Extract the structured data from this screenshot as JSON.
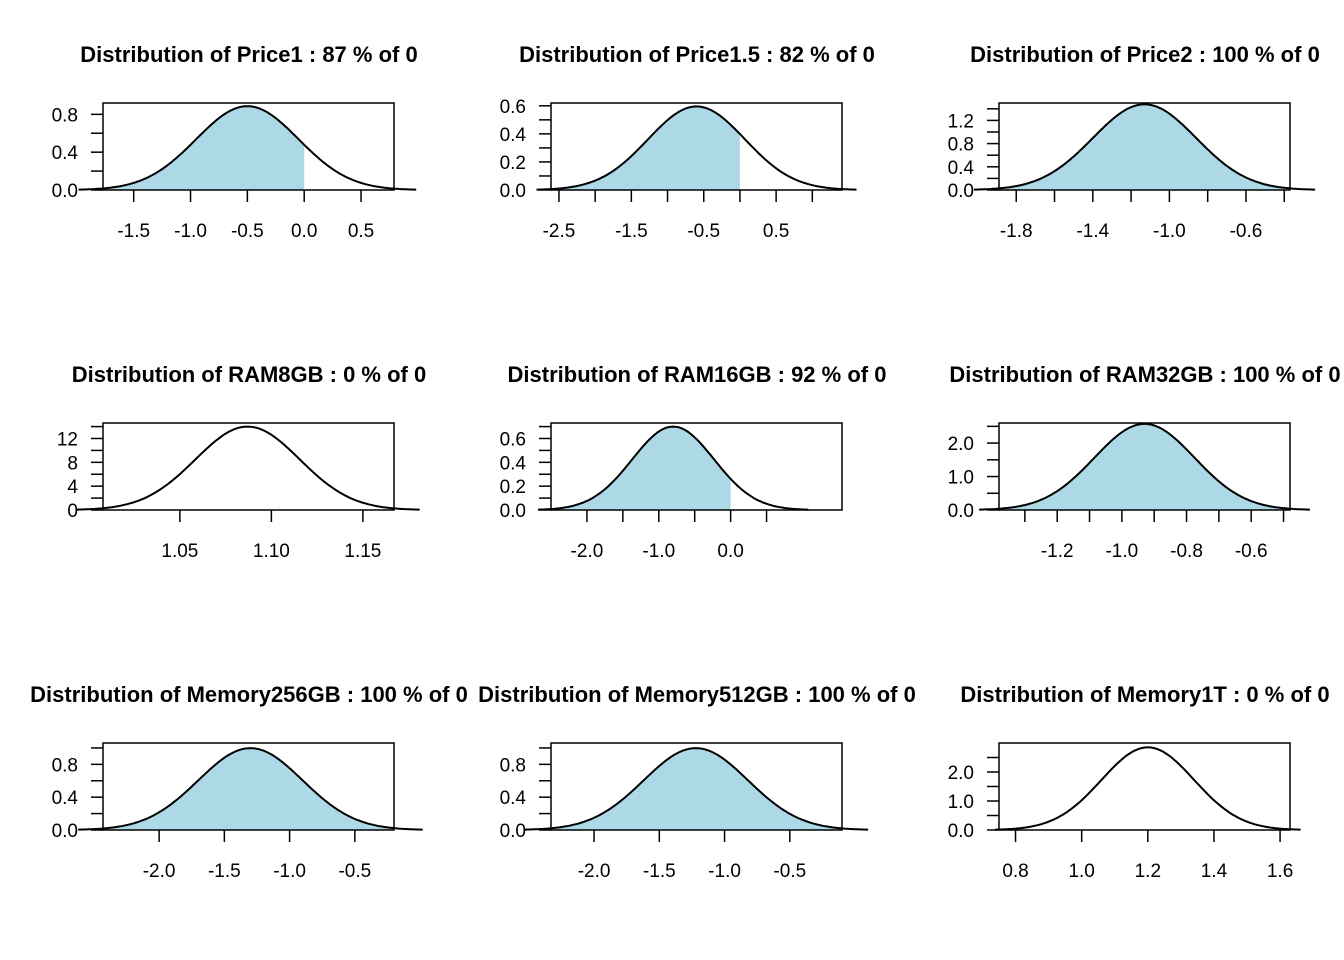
{
  "fill_color": "#add8e6",
  "curve_color": "#000000",
  "chart_data": [
    {
      "type": "area",
      "title": "Distribution of Price1 : 87 % of 0",
      "mean": -0.5,
      "sd": 0.45,
      "xlim": [
        -1.77,
        0.79
      ],
      "ylim": [
        0,
        0.92
      ],
      "shade_to": 0,
      "xticks": [
        -1.5,
        -1.0,
        -0.5,
        0.0,
        0.5
      ],
      "xtick_labels": [
        "-1.5",
        "-1.0",
        "-0.5",
        "0.0",
        "0.5"
      ],
      "yticks": [
        0.0,
        0.2,
        0.4,
        0.6,
        0.8
      ],
      "ytick_labels": [
        "0.0",
        "",
        "0.4",
        "",
        "0.8"
      ]
    },
    {
      "type": "area",
      "title": "Distribution of Price1.5 : 82 % of 0",
      "mean": -0.6,
      "sd": 0.67,
      "xlim": [
        -2.61,
        1.41
      ],
      "ylim": [
        0,
        0.62
      ],
      "shade_to": 0,
      "xticks": [
        -2.5,
        -2.0,
        -1.5,
        -1.0,
        -0.5,
        0.0,
        0.5,
        1.0
      ],
      "xtick_labels": [
        "-2.5",
        "",
        "-1.5",
        "",
        "-0.5",
        "",
        "0.5",
        ""
      ],
      "yticks": [
        0.0,
        0.1,
        0.2,
        0.3,
        0.4,
        0.5,
        0.6
      ],
      "ytick_labels": [
        "0.0",
        "",
        "0.2",
        "",
        "0.4",
        "",
        "0.6"
      ]
    },
    {
      "type": "area",
      "title": "Distribution of Price2 : 100 % of 0",
      "mean": -1.13,
      "sd": 0.27,
      "xlim": [
        -1.89,
        -0.37
      ],
      "ylim": [
        0,
        1.5
      ],
      "shade_to": -0.4,
      "xticks": [
        -1.8,
        -1.6,
        -1.4,
        -1.2,
        -1.0,
        -0.8,
        -0.6,
        -0.4
      ],
      "xtick_labels": [
        "-1.8",
        "",
        "-1.4",
        "",
        "-1.0",
        "",
        "-0.6",
        ""
      ],
      "yticks": [
        0.0,
        0.2,
        0.4,
        0.6,
        0.8,
        1.0,
        1.2,
        1.4
      ],
      "ytick_labels": [
        "0.0",
        "",
        "0.4",
        "",
        "0.8",
        "",
        "1.2",
        ""
      ]
    },
    {
      "type": "area",
      "title": "Distribution of RAM8GB : 0 % of 0",
      "mean": 1.087,
      "sd": 0.0285,
      "xlim": [
        1.008,
        1.167
      ],
      "ylim": [
        0,
        14.6
      ],
      "shade_to": null,
      "xticks": [
        1.05,
        1.1,
        1.15
      ],
      "xtick_labels": [
        "1.05",
        "1.10",
        "1.15"
      ],
      "yticks": [
        0,
        2,
        4,
        6,
        8,
        10,
        12,
        14
      ],
      "ytick_labels": [
        "0",
        "",
        "4",
        "",
        "8",
        "",
        "12",
        ""
      ]
    },
    {
      "type": "area",
      "title": "Distribution of RAM16GB : 92 % of 0",
      "mean": -0.8,
      "sd": 0.57,
      "xlim": [
        -2.5,
        1.55
      ],
      "ylim": [
        0,
        0.73
      ],
      "shade_to": 0,
      "xticks": [
        -2.0,
        -1.5,
        -1.0,
        -0.5,
        0.0,
        0.5
      ],
      "xtick_labels": [
        "-2.0",
        "",
        "-1.0",
        "",
        "0.0",
        ""
      ],
      "yticks": [
        0.0,
        0.1,
        0.2,
        0.3,
        0.4,
        0.5,
        0.6,
        0.7
      ],
      "ytick_labels": [
        "0.0",
        "",
        "0.2",
        "",
        "0.4",
        "",
        "0.6",
        ""
      ]
    },
    {
      "type": "area",
      "title": "Distribution of RAM32GB : 100 % of 0",
      "mean": -0.93,
      "sd": 0.155,
      "xlim": [
        -1.38,
        -0.48
      ],
      "ylim": [
        0,
        2.6
      ],
      "shade_to": -0.48,
      "xticks": [
        -1.3,
        -1.2,
        -1.1,
        -1.0,
        -0.9,
        -0.8,
        -0.7,
        -0.6,
        -0.5
      ],
      "xtick_labels": [
        "",
        "-1.2",
        "",
        "-1.0",
        "",
        "-0.8",
        "",
        "-0.6",
        ""
      ],
      "yticks": [
        0.0,
        0.5,
        1.0,
        1.5,
        2.0,
        2.5
      ],
      "ytick_labels": [
        "0.0",
        "",
        "1.0",
        "",
        "2.0",
        ""
      ]
    },
    {
      "type": "area",
      "title": "Distribution of Memory256GB : 100 % of 0",
      "mean": -1.3,
      "sd": 0.4,
      "xlim": [
        -2.43,
        -0.2
      ],
      "ylim": [
        0,
        1.06
      ],
      "shade_to": -0.2,
      "xticks": [
        -2.0,
        -1.5,
        -1.0,
        -0.5
      ],
      "xtick_labels": [
        "-2.0",
        "-1.5",
        "-1.0",
        "-0.5"
      ],
      "yticks": [
        0.0,
        0.2,
        0.4,
        0.6,
        0.8,
        1.0
      ],
      "ytick_labels": [
        "0.0",
        "",
        "0.4",
        "",
        "0.8",
        ""
      ]
    },
    {
      "type": "area",
      "title": "Distribution of Memory512GB : 100 % of 0",
      "mean": -1.22,
      "sd": 0.4,
      "xlim": [
        -2.33,
        -0.1
      ],
      "ylim": [
        0,
        1.06
      ],
      "shade_to": -0.1,
      "xticks": [
        -2.0,
        -1.5,
        -1.0,
        -0.5
      ],
      "xtick_labels": [
        "-2.0",
        "-1.5",
        "-1.0",
        "-0.5"
      ],
      "yticks": [
        0.0,
        0.2,
        0.4,
        0.6,
        0.8,
        1.0
      ],
      "ytick_labels": [
        "0.0",
        "",
        "0.4",
        "",
        "0.8",
        ""
      ]
    },
    {
      "type": "area",
      "title": "Distribution of Memory1T : 0 % of 0",
      "mean": 1.2,
      "sd": 0.14,
      "xlim": [
        0.75,
        1.63
      ],
      "ylim": [
        0,
        3.0
      ],
      "shade_to": null,
      "xticks": [
        0.8,
        1.0,
        1.2,
        1.4,
        1.6
      ],
      "xtick_labels": [
        "0.8",
        "1.0",
        "1.2",
        "1.4",
        "1.6"
      ],
      "yticks": [
        0.0,
        0.5,
        1.0,
        1.5,
        2.0,
        2.5
      ],
      "ytick_labels": [
        "0.0",
        "",
        "1.0",
        "",
        "2.0",
        ""
      ]
    }
  ]
}
